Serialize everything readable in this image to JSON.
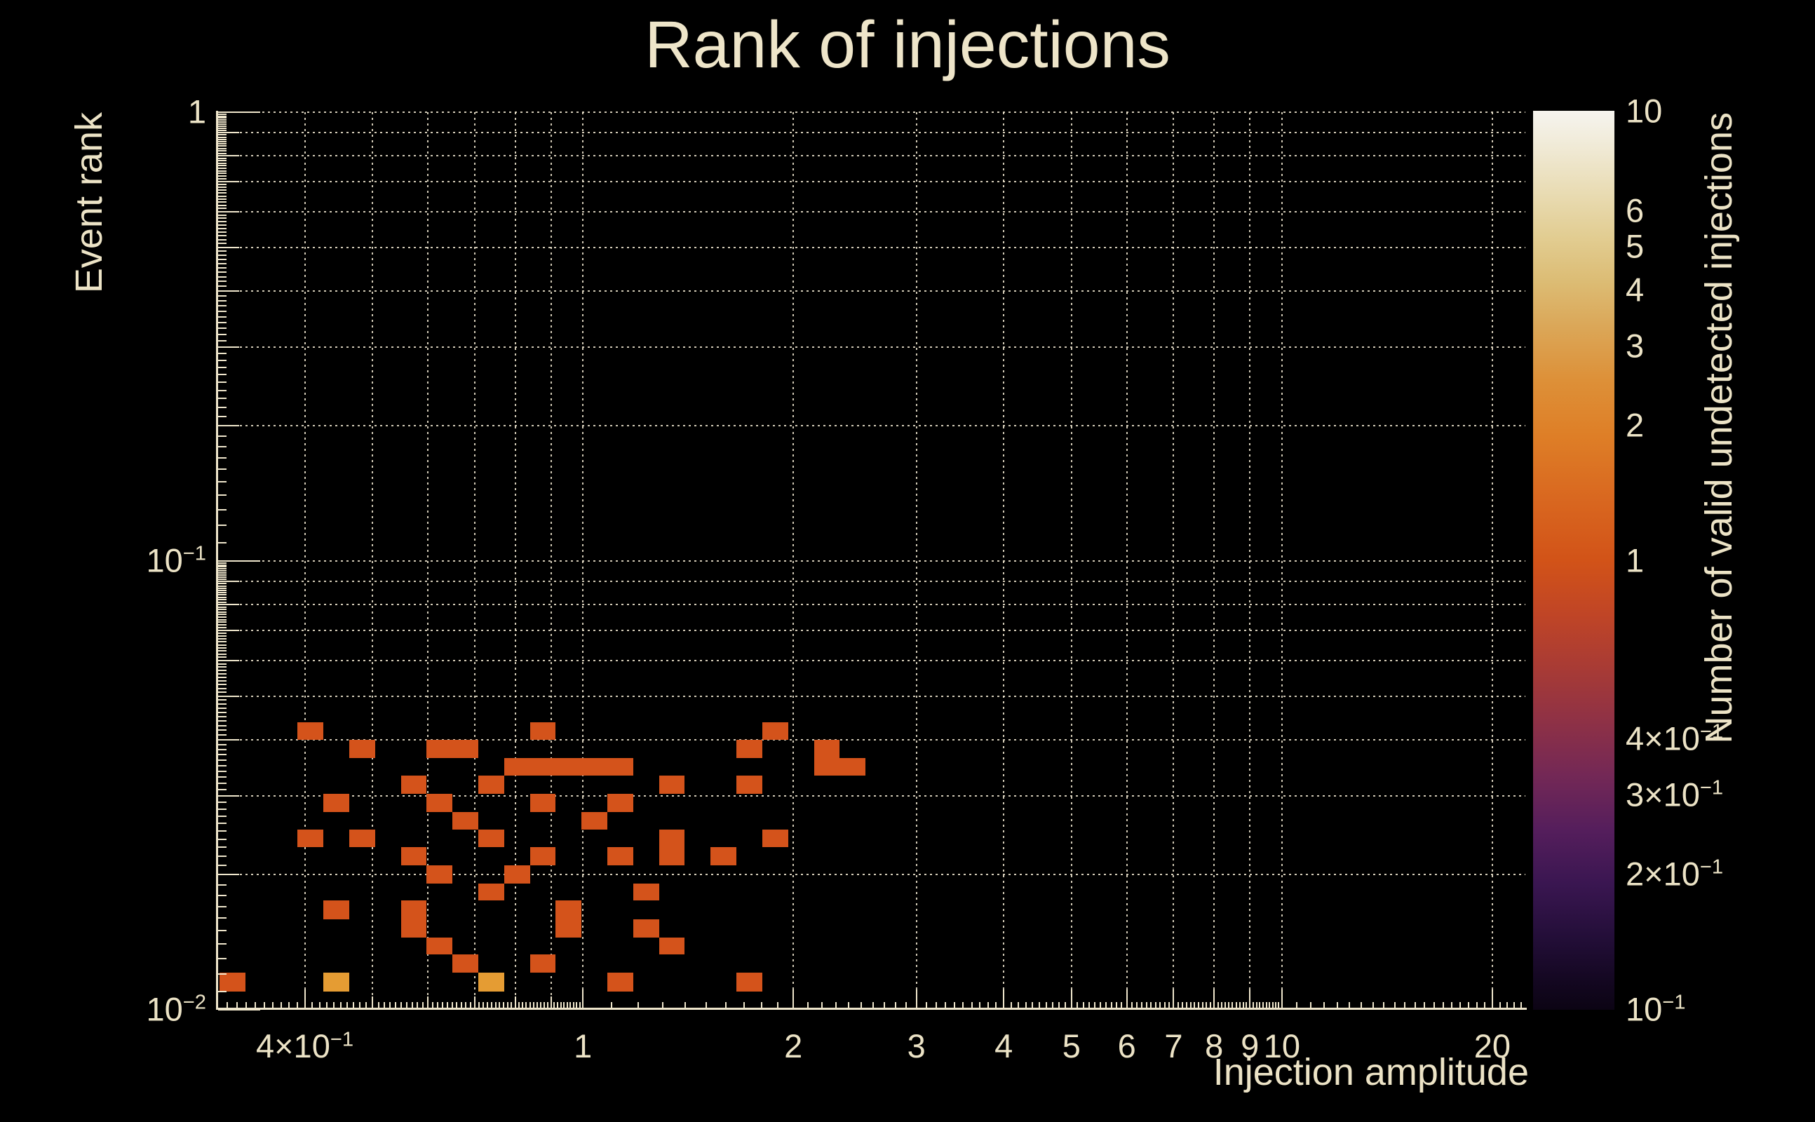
{
  "title": "Rank of injections",
  "x_axis": {
    "label": "Injection amplitude",
    "scale": "log",
    "min": 0.3,
    "max": 22.3,
    "tick_labels": [
      {
        "v": 0.4,
        "base": "4×10",
        "exp": "−1"
      },
      {
        "v": 1,
        "base": "1"
      },
      {
        "v": 2,
        "base": "2"
      },
      {
        "v": 3,
        "base": "3"
      },
      {
        "v": 4,
        "base": "4"
      },
      {
        "v": 5,
        "base": "5"
      },
      {
        "v": 6,
        "base": "6"
      },
      {
        "v": 7,
        "base": "7"
      },
      {
        "v": 8,
        "base": "8"
      },
      {
        "v": 9,
        "base": "9"
      },
      {
        "v": 10,
        "base": "10"
      },
      {
        "v": 20,
        "base": "20"
      }
    ],
    "minor_gridlines": [
      0.5,
      0.6,
      0.7,
      0.8,
      0.9
    ],
    "gridline_values": [
      0.4,
      0.5,
      0.6,
      0.7,
      0.8,
      0.9,
      1,
      2,
      3,
      4,
      5,
      6,
      7,
      8,
      9,
      10,
      20
    ]
  },
  "y_axis": {
    "label": "Event rank",
    "scale": "log",
    "min": 0.01,
    "max": 1,
    "tick_labels": [
      {
        "v": 1,
        "base": "1"
      },
      {
        "v": 0.1,
        "base": "10",
        "exp": "−1"
      },
      {
        "v": 0.01,
        "base": "10",
        "exp": "−2"
      }
    ],
    "gridline_values": [
      1,
      0.9,
      0.8,
      0.7,
      0.6,
      0.5,
      0.4,
      0.3,
      0.2,
      0.1,
      0.09,
      0.08,
      0.07,
      0.06,
      0.05,
      0.04,
      0.03,
      0.02
    ]
  },
  "colorbar": {
    "label": "Number of valid undetected injections",
    "scale": "log",
    "min": 0.1,
    "max": 10,
    "tick_labels": [
      {
        "v": 10,
        "base": "10"
      },
      {
        "v": 6,
        "base": "6"
      },
      {
        "v": 5,
        "base": "5"
      },
      {
        "v": 4,
        "base": "4"
      },
      {
        "v": 3,
        "base": "3"
      },
      {
        "v": 2,
        "base": "2"
      },
      {
        "v": 1,
        "base": "1"
      },
      {
        "v": 0.4,
        "base": "4×10",
        "exp": "−1"
      },
      {
        "v": 0.3,
        "base": "3×10",
        "exp": "−1"
      },
      {
        "v": 0.2,
        "base": "2×10",
        "exp": "−1"
      },
      {
        "v": 0.1,
        "base": "10",
        "exp": "−1"
      }
    ],
    "minor_ticks": [
      9,
      8,
      7,
      6,
      5,
      4,
      3,
      2,
      0.9,
      0.8,
      0.7,
      0.6,
      0.5,
      0.4,
      0.3,
      0.2
    ],
    "major_ticks": [
      1
    ],
    "gradient": [
      [
        0,
        "#f6f4ef"
      ],
      [
        4,
        "#f0ead6"
      ],
      [
        9,
        "#e9dcb4"
      ],
      [
        14,
        "#e2cd92"
      ],
      [
        19,
        "#dcbc74"
      ],
      [
        24,
        "#dba758"
      ],
      [
        30,
        "#dd9038"
      ],
      [
        36,
        "#de7f27"
      ],
      [
        43,
        "#d96820"
      ],
      [
        50,
        "#d25318"
      ],
      [
        56,
        "#c04526"
      ],
      [
        62,
        "#a83b35"
      ],
      [
        68,
        "#8e3146"
      ],
      [
        74,
        "#732856"
      ],
      [
        80,
        "#551e5c"
      ],
      [
        86,
        "#3a1651"
      ],
      [
        92,
        "#230e38"
      ],
      [
        97,
        "#130720"
      ],
      [
        100,
        "#0c0414"
      ]
    ],
    "count_colors": {
      "1": "#d4531b",
      "2": "#e59c33"
    }
  },
  "chart_data": {
    "type": "heatmap",
    "title": "Rank of injections",
    "xlabel": "Injection amplitude",
    "ylabel": "Event rank",
    "zlabel": "Number of valid undetected injections",
    "xscale": "log",
    "yscale": "log",
    "zscale": "log",
    "xlim": [
      0.3,
      22.3
    ],
    "ylim": [
      0.01,
      1
    ],
    "zlim": [
      0.1,
      10
    ],
    "grid": "dotted",
    "cells": [
      {
        "amp": [
          0.39,
          0.425
        ],
        "rank": [
          0.0437,
          0.0399
        ],
        "count": 1
      },
      {
        "amp": [
          0.84,
          0.914
        ],
        "rank": [
          0.0437,
          0.0399
        ],
        "count": 1
      },
      {
        "amp": [
          1.806,
          1.966
        ],
        "rank": [
          0.0437,
          0.0399
        ],
        "count": 1
      },
      {
        "amp": [
          0.463,
          0.504
        ],
        "rank": [
          0.0399,
          0.0364
        ],
        "count": 1
      },
      {
        "amp": [
          0.597,
          0.708
        ],
        "rank": [
          0.0399,
          0.0364
        ],
        "count": 1
      },
      {
        "amp": [
          1.659,
          1.806
        ],
        "rank": [
          0.0399,
          0.0364
        ],
        "count": 1
      },
      {
        "amp": [
          2.141,
          2.331
        ],
        "rank": [
          0.0399,
          0.0364
        ],
        "count": 1
      },
      {
        "amp": [
          0.771,
          1.18
        ],
        "rank": [
          0.0364,
          0.0332
        ],
        "count": 1
      },
      {
        "amp": [
          2.141,
          2.538
        ],
        "rank": [
          0.0364,
          0.0332
        ],
        "count": 1
      },
      {
        "amp": [
          0.549,
          0.597
        ],
        "rank": [
          0.0332,
          0.0303
        ],
        "count": 1
      },
      {
        "amp": [
          0.708,
          0.771
        ],
        "rank": [
          0.0332,
          0.0303
        ],
        "count": 1
      },
      {
        "amp": [
          1.285,
          1.399
        ],
        "rank": [
          0.0332,
          0.0303
        ],
        "count": 1
      },
      {
        "amp": [
          1.659,
          1.806
        ],
        "rank": [
          0.0332,
          0.0303
        ],
        "count": 1
      },
      {
        "amp": [
          0.425,
          0.463
        ],
        "rank": [
          0.0303,
          0.0276
        ],
        "count": 1
      },
      {
        "amp": [
          0.597,
          0.65
        ],
        "rank": [
          0.0303,
          0.0276
        ],
        "count": 1
      },
      {
        "amp": [
          0.84,
          0.914
        ],
        "rank": [
          0.0303,
          0.0276
        ],
        "count": 1
      },
      {
        "amp": [
          1.084,
          1.18
        ],
        "rank": [
          0.0303,
          0.0276
        ],
        "count": 1
      },
      {
        "amp": [
          0.65,
          0.708
        ],
        "rank": [
          0.0276,
          0.0252
        ],
        "count": 1
      },
      {
        "amp": [
          0.995,
          1.084
        ],
        "rank": [
          0.0276,
          0.0252
        ],
        "count": 1
      },
      {
        "amp": [
          0.39,
          0.425
        ],
        "rank": [
          0.0252,
          0.023
        ],
        "count": 1
      },
      {
        "amp": [
          0.463,
          0.504
        ],
        "rank": [
          0.0252,
          0.023
        ],
        "count": 1
      },
      {
        "amp": [
          0.708,
          0.771
        ],
        "rank": [
          0.0252,
          0.023
        ],
        "count": 1
      },
      {
        "amp": [
          1.285,
          1.399
        ],
        "rank": [
          0.0252,
          0.023
        ],
        "count": 1
      },
      {
        "amp": [
          1.806,
          1.966
        ],
        "rank": [
          0.0252,
          0.023
        ],
        "count": 1
      },
      {
        "amp": [
          0.549,
          0.597
        ],
        "rank": [
          0.023,
          0.021
        ],
        "count": 1
      },
      {
        "amp": [
          0.84,
          0.914
        ],
        "rank": [
          0.023,
          0.021
        ],
        "count": 1
      },
      {
        "amp": [
          1.084,
          1.18
        ],
        "rank": [
          0.023,
          0.021
        ],
        "count": 1
      },
      {
        "amp": [
          1.285,
          1.399
        ],
        "rank": [
          0.023,
          0.021
        ],
        "count": 1
      },
      {
        "amp": [
          1.523,
          1.659
        ],
        "rank": [
          0.023,
          0.021
        ],
        "count": 1
      },
      {
        "amp": [
          0.597,
          0.65
        ],
        "rank": [
          0.021,
          0.0191
        ],
        "count": 1
      },
      {
        "amp": [
          0.771,
          0.84
        ],
        "rank": [
          0.021,
          0.0191
        ],
        "count": 1
      },
      {
        "amp": [
          0.708,
          0.771
        ],
        "rank": [
          0.0191,
          0.0175
        ],
        "count": 1
      },
      {
        "amp": [
          1.18,
          1.285
        ],
        "rank": [
          0.0191,
          0.0175
        ],
        "count": 1
      },
      {
        "amp": [
          0.425,
          0.463
        ],
        "rank": [
          0.0175,
          0.0159
        ],
        "count": 1
      },
      {
        "amp": [
          0.549,
          0.597
        ],
        "rank": [
          0.0175,
          0.0159
        ],
        "count": 1
      },
      {
        "amp": [
          0.914,
          0.995
        ],
        "rank": [
          0.0175,
          0.0159
        ],
        "count": 1
      },
      {
        "amp": [
          0.549,
          0.597
        ],
        "rank": [
          0.0159,
          0.0145
        ],
        "count": 1
      },
      {
        "amp": [
          0.914,
          0.995
        ],
        "rank": [
          0.0159,
          0.0145
        ],
        "count": 1
      },
      {
        "amp": [
          1.18,
          1.285
        ],
        "rank": [
          0.0159,
          0.0145
        ],
        "count": 1
      },
      {
        "amp": [
          0.597,
          0.65
        ],
        "rank": [
          0.0145,
          0.0133
        ],
        "count": 1
      },
      {
        "amp": [
          1.285,
          1.399
        ],
        "rank": [
          0.0145,
          0.0133
        ],
        "count": 1
      },
      {
        "amp": [
          0.65,
          0.708
        ],
        "rank": [
          0.0133,
          0.0121
        ],
        "count": 1
      },
      {
        "amp": [
          0.84,
          0.914
        ],
        "rank": [
          0.0133,
          0.0121
        ],
        "count": 1
      },
      {
        "amp": [
          0.302,
          0.329
        ],
        "rank": [
          0.0121,
          0.011
        ],
        "count": 1
      },
      {
        "amp": [
          0.425,
          0.463
        ],
        "rank": [
          0.0121,
          0.011
        ],
        "count": 2
      },
      {
        "amp": [
          0.708,
          0.771
        ],
        "rank": [
          0.0121,
          0.011
        ],
        "count": 2
      },
      {
        "amp": [
          1.084,
          1.18
        ],
        "rank": [
          0.0121,
          0.011
        ],
        "count": 1
      },
      {
        "amp": [
          1.659,
          1.806
        ],
        "rank": [
          0.0121,
          0.011
        ],
        "count": 1
      }
    ]
  }
}
